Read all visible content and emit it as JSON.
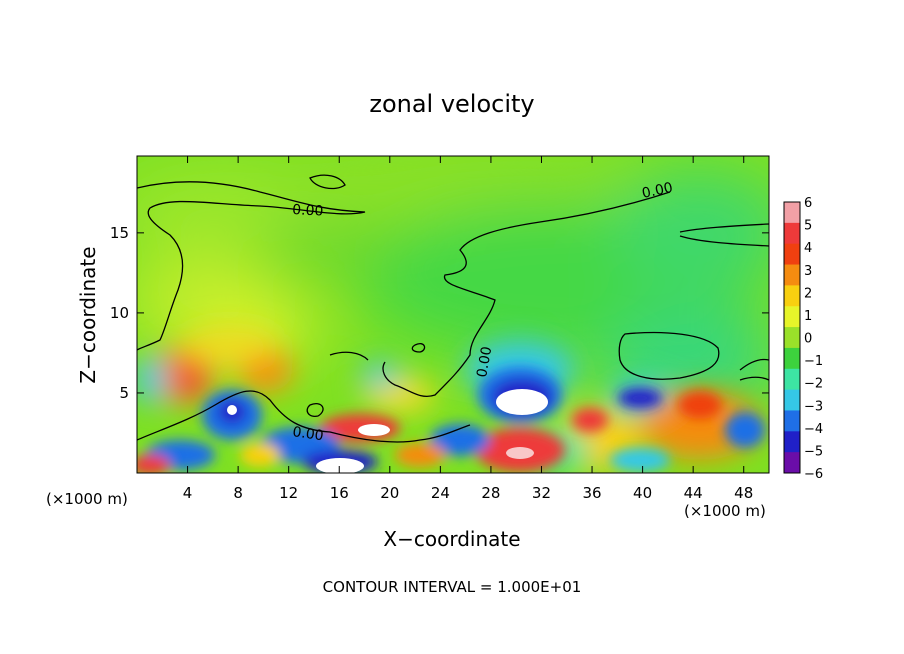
{
  "chart_data": {
    "type": "heatmap",
    "title": "zonal velocity",
    "xlabel": "X−coordinate",
    "ylabel": "Z−coordinate",
    "x_unit_label_left": "(×1000 m)",
    "x_unit_label_right": "(×1000 m)",
    "xlim": [
      0,
      50
    ],
    "ylim": [
      0,
      19.8
    ],
    "x_ticks": [
      4,
      8,
      12,
      16,
      20,
      24,
      28,
      32,
      36,
      40,
      44,
      48
    ],
    "y_ticks": [
      5,
      10,
      15
    ],
    "footer": "CONTOUR INTERVAL = 1.000E+01",
    "contour_label": "0.00",
    "colorbar": {
      "ticks": [
        "6",
        "5",
        "4",
        "3",
        "2",
        "1",
        "0",
        "−1",
        "−2",
        "−3",
        "−4",
        "−5",
        "−6"
      ],
      "colors": [
        "#f2a0a6",
        "#ee3a3a",
        "#f04010",
        "#f58c10",
        "#f8d010",
        "#e7f52a",
        "#9ae12a",
        "#3dd23d",
        "#3de4a3",
        "#35c8e6",
        "#1f6fe6",
        "#2020c8",
        "#6a0da8"
      ]
    },
    "field_description_values": {
      "upper_region": 0.5,
      "lower_left_positive_max": 4,
      "lower_negative_max": -6,
      "jet_near_x30_z5": -6
    }
  }
}
